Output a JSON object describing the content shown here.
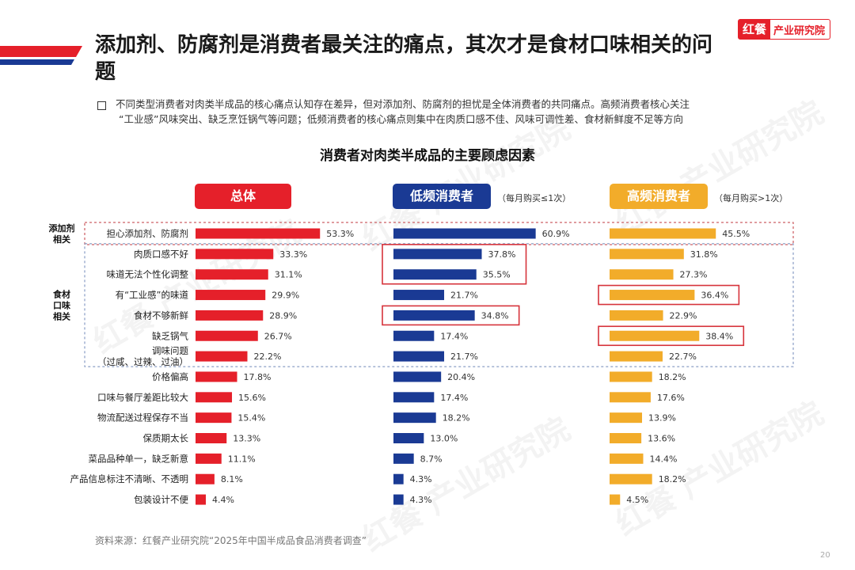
{
  "header": {
    "title": "添加剂、防腐剂是消费者最关注的痛点，其次才是食材口味相关的问题",
    "logo_mark": "红餐",
    "logo_text": "产业研究院"
  },
  "summary": {
    "line1": "不同类型消费者对肉类半成品的核心痛点认知存在差异，但对添加剂、防腐剂的担忧是全体消费者的共同痛点。高频消费者核心关注",
    "line2": "“工业感”风味突出、缺乏烹饪锅气等问题；低频消费者的核心痛点则集中在肉质口感不佳、风味可调性差、食材新鲜度不足等方向"
  },
  "watermark_text": "红餐 产业研究院",
  "footer": {
    "source": "资料来源：红餐产业研究院“2025年中国半成品食品消费者调查”",
    "page_number": "20"
  },
  "colors": {
    "total": "#e5202a",
    "low": "#1a3a94",
    "high": "#f2ac2a",
    "highlight_box": "#d6333b",
    "group_dashed": "#c0393f",
    "group_dashed_blue": "#6f87b8"
  },
  "chart_data": {
    "type": "bar",
    "title": "消费者对肉类半成品的主要顾虑因素",
    "value_unit": "%",
    "categories": [
      "担心添加剂、防腐剂",
      "肉质口感不好",
      "味道无法个性化调整",
      "有“工业感”的味道",
      "食材不够新鲜",
      "缺乏锅气",
      "调味问题\n（过咸、过辣、过油）",
      "价格偏高",
      "口味与餐厅差距比较大",
      "物流配送过程保存不当",
      "保质期太长",
      "菜品品种单一，缺乏新意",
      "产品信息标注不清晰、不透明",
      "包装设计不便"
    ],
    "series": [
      {
        "name": "总体",
        "note": "",
        "values": [
          53.3,
          33.3,
          31.1,
          29.9,
          28.9,
          26.7,
          22.2,
          17.8,
          15.6,
          15.4,
          13.3,
          11.1,
          8.1,
          4.4
        ]
      },
      {
        "name": "低频消费者",
        "note": "（每月购买≤1次）",
        "values": [
          60.9,
          37.8,
          35.5,
          21.7,
          34.8,
          17.4,
          21.7,
          20.4,
          17.4,
          18.2,
          13.0,
          8.7,
          4.3,
          4.3
        ],
        "highlighted": [
          1,
          2,
          4
        ]
      },
      {
        "name": "高频消费者",
        "note": "（每月购买>1次）",
        "values": [
          45.5,
          31.8,
          27.3,
          36.4,
          22.9,
          38.4,
          22.7,
          18.2,
          17.6,
          13.9,
          13.6,
          14.4,
          18.2,
          4.5
        ],
        "highlighted": [
          3,
          5
        ]
      }
    ],
    "groups": [
      {
        "label": "添加剂\n相关",
        "rows": [
          0,
          0
        ]
      },
      {
        "label": "食材\n口味\n相关",
        "rows": [
          1,
          6
        ]
      }
    ]
  }
}
